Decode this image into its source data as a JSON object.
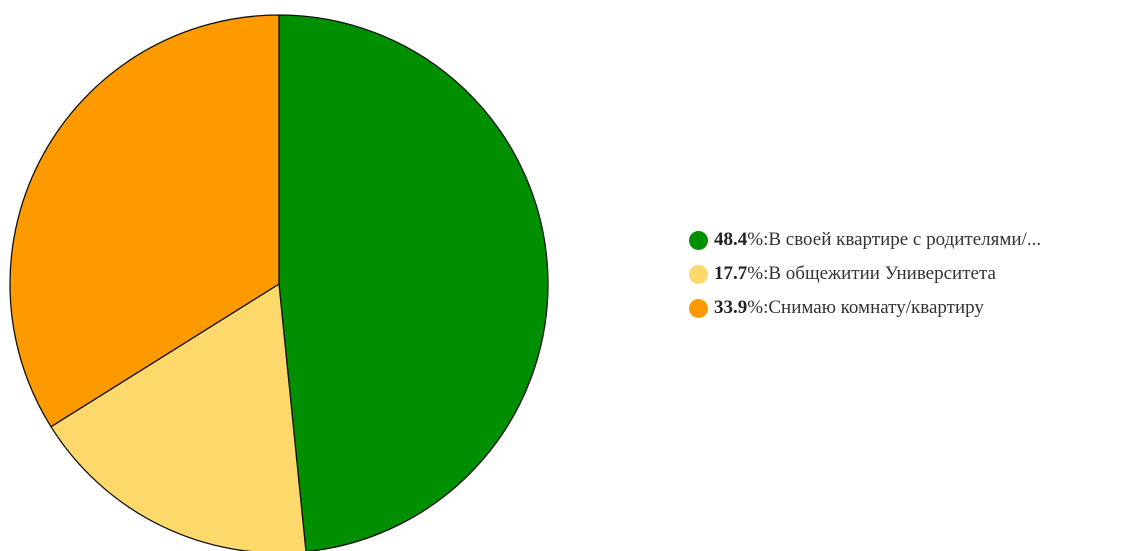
{
  "chart_data": {
    "type": "pie",
    "categories": [
      "В своей квартире с родителями/...",
      "В общежитии Университета",
      "Снимаю комнату/квартиру"
    ],
    "values": [
      48.4,
      17.7,
      33.9
    ],
    "value_labels": [
      "48.4",
      "17.7",
      "33.9"
    ],
    "unit_suffix": "%: ",
    "colors": [
      "#008f00",
      "#fdd86a",
      "#fd9a00"
    ],
    "start_angle_deg": 0,
    "direction": "clockwise",
    "legend": "right"
  }
}
